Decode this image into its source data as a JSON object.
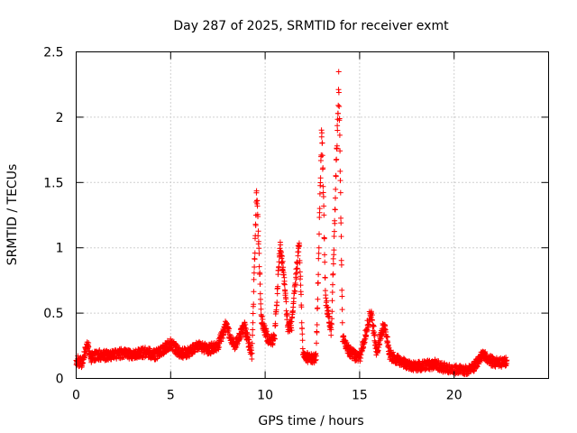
{
  "chart_data": {
    "type": "scatter",
    "title": "Day 287 of 2025, SRMTID for receiver exmt",
    "xlabel": "GPS time / hours",
    "ylabel": "SRMTID / TECUs",
    "xlim": [
      0,
      25
    ],
    "ylim": [
      0,
      2.5
    ],
    "xticks": [
      0,
      5,
      10,
      15,
      20
    ],
    "yticks": [
      0,
      0.5,
      1,
      1.5,
      2,
      2.5
    ],
    "xtick_labels": [
      "0",
      "5",
      "10",
      "15",
      "20"
    ],
    "ytick_labels": [
      "0",
      "0.5",
      "1",
      "1.5",
      "2",
      "2.5"
    ],
    "grid": true,
    "marker": "+",
    "color": "#ff0000",
    "series": [
      {
        "name": "SRMTID",
        "profile": [
          [
            0.0,
            0.14
          ],
          [
            0.3,
            0.12
          ],
          [
            0.6,
            0.26
          ],
          [
            0.8,
            0.16
          ],
          [
            1.2,
            0.18
          ],
          [
            1.8,
            0.17
          ],
          [
            2.4,
            0.19
          ],
          [
            3.0,
            0.18
          ],
          [
            3.6,
            0.2
          ],
          [
            4.2,
            0.18
          ],
          [
            4.6,
            0.22
          ],
          [
            5.0,
            0.27
          ],
          [
            5.5,
            0.19
          ],
          [
            6.0,
            0.2
          ],
          [
            6.4,
            0.25
          ],
          [
            7.0,
            0.22
          ],
          [
            7.5,
            0.25
          ],
          [
            7.9,
            0.4
          ],
          [
            8.4,
            0.25
          ],
          [
            8.9,
            0.4
          ],
          [
            9.3,
            0.18
          ],
          [
            9.55,
            1.45
          ],
          [
            9.8,
            0.45
          ],
          [
            10.2,
            0.28
          ],
          [
            10.5,
            0.3
          ],
          [
            10.8,
            1.05
          ],
          [
            11.0,
            0.75
          ],
          [
            11.2,
            0.4
          ],
          [
            11.4,
            0.4
          ],
          [
            11.8,
            1.05
          ],
          [
            12.0,
            0.18
          ],
          [
            12.4,
            0.15
          ],
          [
            12.7,
            0.16
          ],
          [
            13.0,
            1.95
          ],
          [
            13.2,
            0.6
          ],
          [
            13.5,
            0.35
          ],
          [
            13.9,
            2.3
          ],
          [
            14.1,
            0.3
          ],
          [
            14.5,
            0.2
          ],
          [
            15.0,
            0.15
          ],
          [
            15.6,
            0.52
          ],
          [
            15.9,
            0.2
          ],
          [
            16.3,
            0.42
          ],
          [
            16.6,
            0.18
          ],
          [
            17.0,
            0.14
          ],
          [
            17.5,
            0.11
          ],
          [
            18.0,
            0.09
          ],
          [
            18.5,
            0.1
          ],
          [
            19.0,
            0.11
          ],
          [
            19.5,
            0.08
          ],
          [
            20.0,
            0.07
          ],
          [
            20.5,
            0.06
          ],
          [
            21.0,
            0.08
          ],
          [
            21.5,
            0.18
          ],
          [
            22.0,
            0.13
          ],
          [
            22.5,
            0.12
          ],
          [
            22.8,
            0.13
          ]
        ],
        "noise": 0.035,
        "sample_step_hours": 0.011
      }
    ]
  }
}
